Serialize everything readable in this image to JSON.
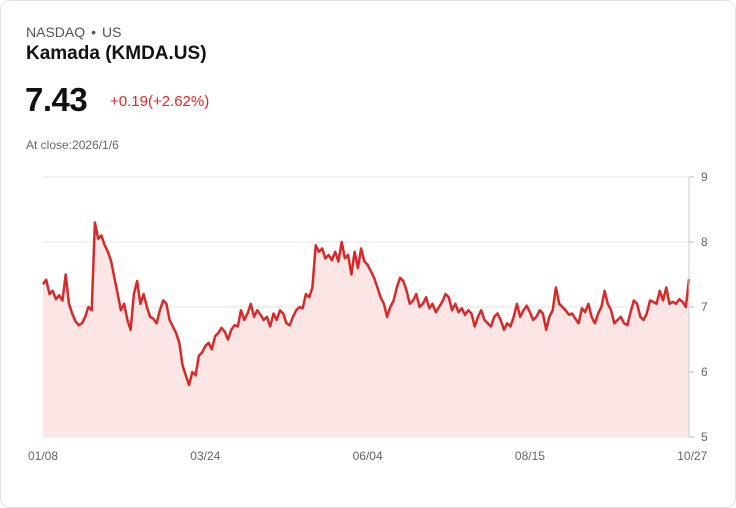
{
  "header": {
    "exchange": "NASDAQ",
    "separator": "•",
    "region": "US",
    "name": "Kamada (KMDA.US)",
    "price": "7.43",
    "change": "+0.19(+2.62%)",
    "close_prefix": "At close:",
    "close_date": "2026/1/6"
  },
  "colors": {
    "line": "#d62a2a",
    "fill": "#fbe5e5",
    "grid": "#e6e6e6",
    "up": "#d62a2a"
  },
  "chart_data": {
    "type": "area",
    "title": "Kamada (KMDA.US)",
    "xlabel": "",
    "ylabel": "",
    "ylim": [
      5,
      9
    ],
    "y_ticks": [
      "9",
      "8",
      "7",
      "6",
      "5"
    ],
    "x_ticks": [
      "01/08",
      "03/24",
      "06/04",
      "08/15",
      "10/27"
    ],
    "x_tick_index": [
      0,
      50,
      100,
      150,
      200
    ],
    "grid": true,
    "values": [
      7.35,
      7.42,
      7.2,
      7.25,
      7.12,
      7.18,
      7.1,
      7.5,
      7.05,
      6.9,
      6.78,
      6.72,
      6.75,
      6.85,
      7.0,
      6.95,
      8.3,
      8.05,
      8.1,
      7.95,
      7.85,
      7.7,
      7.45,
      7.2,
      6.95,
      7.05,
      6.8,
      6.65,
      7.2,
      7.4,
      7.05,
      7.2,
      7.0,
      6.85,
      6.82,
      6.75,
      6.95,
      7.1,
      7.05,
      6.8,
      6.7,
      6.6,
      6.45,
      6.1,
      5.95,
      5.8,
      6.0,
      5.95,
      6.25,
      6.3,
      6.4,
      6.45,
      6.35,
      6.55,
      6.6,
      6.68,
      6.62,
      6.5,
      6.65,
      6.72,
      6.7,
      6.95,
      6.8,
      6.9,
      7.05,
      6.85,
      6.95,
      6.88,
      6.8,
      6.85,
      6.7,
      6.9,
      6.8,
      6.95,
      6.9,
      6.75,
      6.72,
      6.85,
      6.95,
      7.0,
      6.98,
      7.2,
      7.15,
      7.3,
      7.95,
      7.85,
      7.9,
      7.75,
      7.8,
      7.72,
      7.85,
      7.7,
      8.0,
      7.75,
      7.8,
      7.5,
      7.85,
      7.6,
      7.9,
      7.7,
      7.65,
      7.55,
      7.45,
      7.3,
      7.15,
      7.05,
      6.85,
      7.0,
      7.1,
      7.3,
      7.45,
      7.4,
      7.25,
      7.05,
      7.1,
      7.2,
      7.0,
      7.05,
      7.15,
      6.98,
      7.05,
      6.92,
      7.0,
      7.08,
      7.2,
      7.15,
      6.95,
      7.05,
      6.92,
      6.98,
      6.88,
      6.95,
      6.9,
      6.7,
      6.85,
      6.95,
      6.8,
      6.75,
      6.7,
      6.85,
      6.9,
      6.8,
      6.65,
      6.75,
      6.7,
      6.85,
      7.05,
      6.85,
      6.95,
      7.02,
      6.92,
      6.8,
      6.85,
      6.95,
      6.9,
      6.65,
      6.85,
      6.95,
      7.3,
      7.05,
      7.0,
      6.95,
      6.88,
      6.9,
      6.82,
      6.75,
      6.98,
      6.92,
      7.05,
      6.85,
      6.75,
      6.9,
      7.0,
      7.25,
      7.05,
      6.95,
      6.75,
      6.8,
      6.85,
      6.75,
      6.72,
      6.92,
      7.1,
      7.05,
      6.85,
      6.8,
      6.9,
      7.1,
      7.08,
      7.05,
      7.25,
      7.1,
      7.3,
      7.05,
      7.08,
      7.05,
      7.12,
      7.08,
      7.0,
      7.43
    ]
  }
}
